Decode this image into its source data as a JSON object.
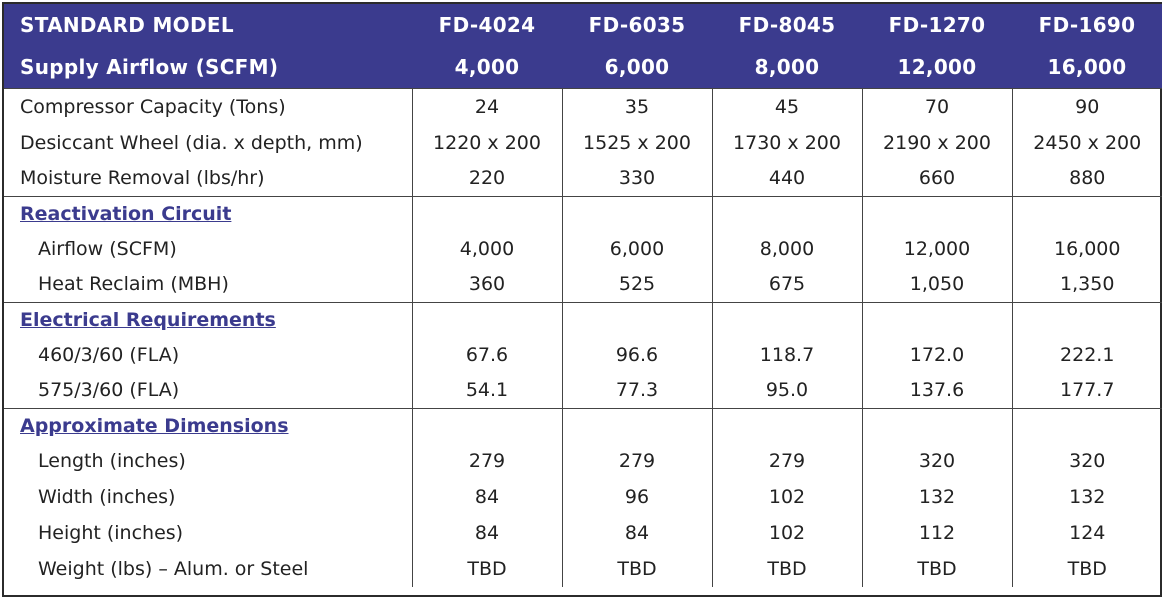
{
  "header": {
    "row1": [
      "STANDARD MODEL",
      "FD-4024",
      "FD-6035",
      "FD-8045",
      "FD-1270",
      "FD-1690"
    ],
    "row2": [
      "Supply Airflow (SCFM)",
      "4,000",
      "6,000",
      "8,000",
      "12,000",
      "16,000"
    ]
  },
  "groups": [
    {
      "title": "",
      "rows": [
        {
          "label": "Compressor Capacity (Tons)",
          "values": [
            "24",
            "35",
            "45",
            "70",
            "90"
          ]
        },
        {
          "label": "Desiccant Wheel (dia. x depth, mm)",
          "values": [
            "1220 x 200",
            "1525 x 200",
            "1730 x 200",
            "2190 x 200",
            "2450 x 200"
          ]
        },
        {
          "label": "Moisture Removal (lbs/hr)",
          "values": [
            "220",
            "330",
            "440",
            "660",
            "880"
          ]
        }
      ]
    },
    {
      "title": "Reactivation Circuit",
      "rows": [
        {
          "label": "Airflow (SCFM)",
          "values": [
            "4,000",
            "6,000",
            "8,000",
            "12,000",
            "16,000"
          ]
        },
        {
          "label": "Heat Reclaim (MBH)",
          "values": [
            "360",
            "525",
            "675",
            "1,050",
            "1,350"
          ]
        }
      ]
    },
    {
      "title": "Electrical Requirements",
      "rows": [
        {
          "label": "460/3/60 (FLA)",
          "values": [
            "67.6",
            "96.6",
            "118.7",
            "172.0",
            "222.1"
          ]
        },
        {
          "label": "575/3/60 (FLA)",
          "values": [
            "54.1",
            "77.3",
            "95.0",
            "137.6",
            "177.7"
          ]
        }
      ]
    },
    {
      "title": "Approximate Dimensions",
      "rows": [
        {
          "label": "Length (inches)",
          "values": [
            "279",
            "279",
            "279",
            "320",
            "320"
          ]
        },
        {
          "label": "Width (inches)",
          "values": [
            "84",
            "96",
            "102",
            "132",
            "132"
          ]
        },
        {
          "label": "Height (inches)",
          "values": [
            "84",
            "84",
            "102",
            "112",
            "124"
          ]
        },
        {
          "label": "Weight (lbs) – Alum. or Steel",
          "values": [
            "TBD",
            "TBD",
            "TBD",
            "TBD",
            "TBD"
          ]
        }
      ]
    }
  ]
}
